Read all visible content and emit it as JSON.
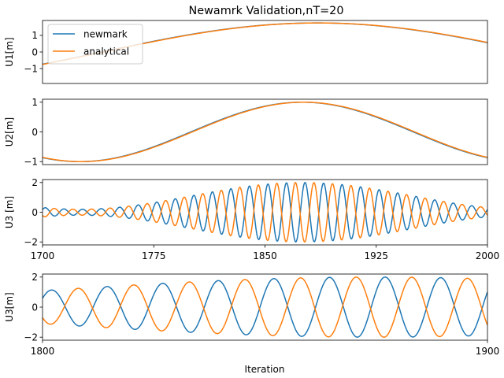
{
  "figure": {
    "title": "Newamrk Validation,nT=20",
    "xlabel": "Iteration"
  },
  "colors": {
    "newmark": "#1f77b4",
    "analytical": "#ff7f0e"
  },
  "chart_data": [
    {
      "type": "line",
      "ylabel": "U1[m]",
      "xlim": [
        1700,
        2000
      ],
      "ylim": [
        -1.9,
        1.9
      ],
      "yticks": [
        -1,
        0,
        1
      ],
      "show_xticks": false,
      "legend": {
        "placement": "top-left",
        "entries": [
          "newmark",
          "analytical"
        ]
      },
      "series": [
        {
          "name": "newmark",
          "model": {
            "amp": 1.75,
            "period": 580,
            "phase_x": 1885
          }
        },
        {
          "name": "analytical",
          "model": {
            "amp": 1.75,
            "period": 580,
            "phase_x": 1886
          }
        }
      ]
    },
    {
      "type": "line",
      "ylabel": "U2[m]",
      "xlim": [
        1700,
        2000
      ],
      "ylim": [
        -1.1,
        1.1
      ],
      "yticks": [
        -1,
        0,
        1
      ],
      "show_xticks": false,
      "series": [
        {
          "name": "newmark",
          "model": {
            "amp": 1.0,
            "period": 300,
            "phase_x": 1875
          }
        },
        {
          "name": "analytical",
          "model": {
            "amp": 1.0,
            "period": 300,
            "phase_x": 1876
          }
        }
      ]
    },
    {
      "type": "line",
      "ylabel": "U3 [m]",
      "xlim": [
        1700,
        2000
      ],
      "ylim": [
        -2.2,
        2.2
      ],
      "yticks": [
        -2,
        0,
        2
      ],
      "xticks": [
        1700,
        1775,
        1850,
        1925,
        2000
      ],
      "show_xticks": true,
      "series": [
        {
          "name": "newmark",
          "model": {
            "env_min": 0.2,
            "env_max": 2.0,
            "env_period": 300,
            "env_peak": 1875,
            "period": 12.5,
            "phase_x": 1877
          }
        },
        {
          "name": "analytical",
          "model": {
            "env_min": 0.2,
            "env_max": 2.0,
            "env_period": 300,
            "env_peak": 1875,
            "period": 12.5,
            "phase_x": 1883
          }
        }
      ]
    },
    {
      "type": "line",
      "ylabel": "U3[m]",
      "xlim": [
        1800,
        1900
      ],
      "ylim": [
        -2.2,
        2.2
      ],
      "yticks": [
        -2,
        0,
        2
      ],
      "xticks": [
        1800,
        1900
      ],
      "show_xticks": true,
      "series": [
        {
          "name": "newmark",
          "model": {
            "env_min": 0.2,
            "env_max": 2.0,
            "env_period": 300,
            "env_peak": 1875,
            "period": 12.5,
            "phase_x": 1877
          }
        },
        {
          "name": "analytical",
          "model": {
            "env_min": 0.2,
            "env_max": 2.0,
            "env_period": 300,
            "env_peak": 1875,
            "period": 12.5,
            "phase_x": 1883
          }
        }
      ]
    }
  ]
}
